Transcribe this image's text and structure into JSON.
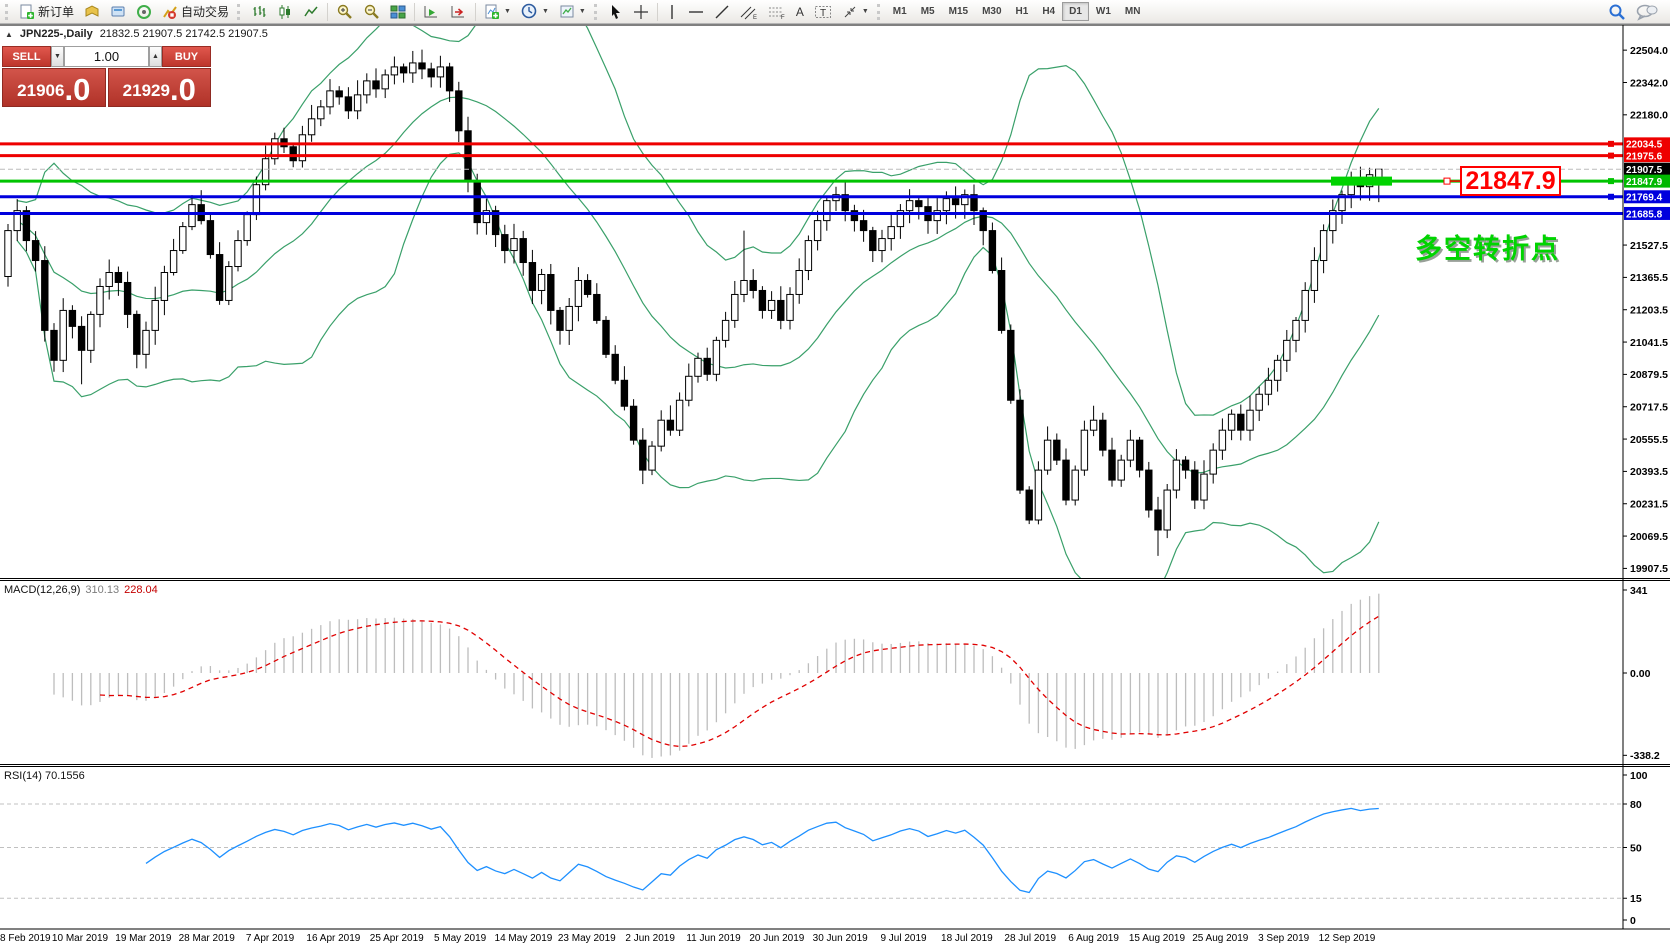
{
  "toolbar": {
    "new_order_label": "新订单",
    "auto_trading_label": "自动交易",
    "timeframes": [
      "M1",
      "M5",
      "M15",
      "M30",
      "H1",
      "H4",
      "D1",
      "W1",
      "MN"
    ],
    "active_timeframe": "D1"
  },
  "header": {
    "symbol": "JPN225-,Daily",
    "ohlc": "21832.5 21907.5 21742.5 21907.5"
  },
  "trade_panel": {
    "sell_label": "SELL",
    "buy_label": "BUY",
    "volume": "1.00",
    "sell_price_int": "21906",
    "sell_price_big": ".0",
    "buy_price_int": "21929",
    "buy_price_big": ".0"
  },
  "levels": [
    {
      "price": 22034.5,
      "label": "22034.5",
      "color": "#ee0000",
      "tag_bg": "#ee0000",
      "width": 3,
      "marker": true,
      "dash": false
    },
    {
      "price": 21975.6,
      "label": "21975.6",
      "color": "#ee0000",
      "tag_bg": "#ee0000",
      "width": 3,
      "marker": true,
      "dash": false
    },
    {
      "price": 21907.5,
      "label": "21907.5",
      "color": "#bcbcbc",
      "tag_bg": "#000000",
      "width": 1,
      "marker": false,
      "dash": true
    },
    {
      "price": 21847.9,
      "label": "21847.9",
      "color": "#00c400",
      "tag_bg": "#00b800",
      "width": 3,
      "marker": true,
      "dash": false
    },
    {
      "price": 21769.4,
      "label": "21769.4",
      "color": "#0000dd",
      "tag_bg": "#0000dd",
      "width": 3,
      "marker": true,
      "dash": false
    },
    {
      "price": 21685.8,
      "label": "21685.8",
      "color": "#0000dd",
      "tag_bg": "#0000dd",
      "width": 3,
      "marker": false,
      "dash": false
    }
  ],
  "price_axis": {
    "ticks": [
      22504.0,
      22342.0,
      22180.0,
      21527.5,
      21365.5,
      21203.5,
      21041.5,
      20879.5,
      20717.5,
      20555.5,
      20393.5,
      20231.5,
      20069.5,
      19907.5
    ]
  },
  "annotations": {
    "price_label": {
      "text": "21847.9",
      "color": "#ff0000"
    },
    "note": {
      "text": "多空转折点",
      "color": "#00d400"
    },
    "highlight_price": 21847.9
  },
  "indicators": {
    "macd": {
      "label": "MACD(12,26,9)",
      "value_main": "310.13",
      "value_signal": "228.04",
      "axis_labels": [
        "341",
        "0.00",
        "-338.2"
      ],
      "axis_values": [
        341,
        0,
        -338.2
      ],
      "hist_color": "#bdbdbd",
      "signal_color": "#e00000"
    },
    "rsi": {
      "label": "RSI(14)",
      "value": "70.1556",
      "levels": [
        80,
        50,
        15
      ],
      "axis_labels": [
        "100",
        "80",
        "50",
        "15",
        "0"
      ],
      "axis_values": [
        100,
        80,
        50,
        15,
        0
      ],
      "line_color": "#1e90ff"
    }
  },
  "date_axis": [
    "8 Feb 2019",
    "10 Mar 2019",
    "19 Mar 2019",
    "28 Mar 2019",
    "7 Apr 2019",
    "16 Apr 2019",
    "25 Apr 2019",
    "5 May 2019",
    "14 May 2019",
    "23 May 2019",
    "2 Jun 2019",
    "11 Jun 2019",
    "20 Jun 2019",
    "30 Jun 2019",
    "9 Jul 2019",
    "18 Jul 2019",
    "28 Jul 2019",
    "6 Aug 2019",
    "15 Aug 2019",
    "25 Aug 2019",
    "3 Sep 2019",
    "12 Sep 2019"
  ],
  "chart_data": {
    "type": "candlestick",
    "symbol": "JPN225-",
    "timeframe": "Daily",
    "bid": 21906.0,
    "ask": 21929.0,
    "ohlc_today": [
      21832.5,
      21907.5,
      21742.5,
      21907.5
    ],
    "bollinger_color": "#3aa06a",
    "up_color": "#ffffff",
    "down_color": "#000000",
    "closes": [
      21600,
      21700,
      21550,
      21450,
      21100,
      20950,
      21200,
      21120,
      21000,
      21180,
      21320,
      21390,
      21340,
      21180,
      20980,
      21100,
      21250,
      21390,
      21500,
      21620,
      21730,
      21650,
      21480,
      21250,
      21420,
      21550,
      21680,
      21830,
      21960,
      22060,
      22020,
      21950,
      22080,
      22160,
      22220,
      22300,
      22270,
      22200,
      22280,
      22350,
      22310,
      22380,
      22420,
      22390,
      22440,
      22410,
      22370,
      22420,
      22300,
      22100,
      21850,
      21640,
      21700,
      21580,
      21500,
      21560,
      21440,
      21300,
      21380,
      21200,
      21100,
      21220,
      21350,
      21280,
      21150,
      20980,
      20850,
      20720,
      20550,
      20400,
      20520,
      20650,
      20600,
      20750,
      20870,
      20960,
      20880,
      21050,
      21150,
      21280,
      21350,
      21300,
      21200,
      21250,
      21150,
      21280,
      21400,
      21550,
      21650,
      21750,
      21780,
      21700,
      21650,
      21600,
      21500,
      21560,
      21620,
      21700,
      21750,
      21720,
      21650,
      21700,
      21760,
      21730,
      21780,
      21700,
      21600,
      21400,
      21100,
      20750,
      20300,
      20150,
      20400,
      20550,
      20450,
      20250,
      20400,
      20600,
      20650,
      20500,
      20350,
      20450,
      20550,
      20400,
      20200,
      20100,
      20300,
      20450,
      20400,
      20250,
      20380,
      20500,
      20600,
      20680,
      20600,
      20700,
      20780,
      20850,
      20950,
      21050,
      21150,
      21300,
      21450,
      21600,
      21700,
      21780,
      21850,
      21820,
      21880,
      21907.5
    ],
    "wick_overrides_high": {
      "44": 22500,
      "80": 21600
    },
    "wick_overrides_low": {
      "8": 20830,
      "69": 20330,
      "125": 19970
    }
  }
}
